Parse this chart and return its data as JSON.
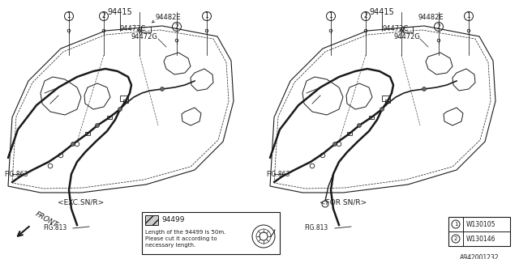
{
  "bg_color": "#ffffff",
  "line_color": "#1a1a1a",
  "gray_color": "#888888",
  "label_exc": "<EXC.SN/R>",
  "label_for": "<FOR SN/R>",
  "label_front": "FRONT",
  "legend_part": "94499",
  "legend_text1": "Length of the 94499 is 50m.",
  "legend_text2": "Please cut it according to",
  "legend_text3": "necessary length.",
  "ref1_part": "W130105",
  "ref2_part": "W130146",
  "diagram_id": "A942001232",
  "pn_94415": "94415",
  "pn_94482E": "94482E",
  "pn_94472C": "94472C",
  "pn_94472G": "94472G",
  "fig863": "FIG.863",
  "fig813": "FIG.813"
}
